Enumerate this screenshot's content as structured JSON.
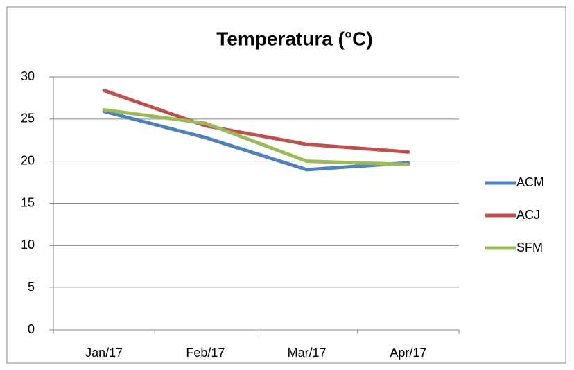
{
  "chart_data": {
    "type": "line",
    "title": "Temperatura (°C)",
    "categories": [
      "Jan/17",
      "Feb/17",
      "Mar/17",
      "Apr/17"
    ],
    "series": [
      {
        "name": "ACM",
        "color": "#4f81bd",
        "values": [
          25.9,
          22.8,
          19.0,
          19.8
        ]
      },
      {
        "name": "ACJ",
        "color": "#c0504d",
        "values": [
          28.4,
          24.2,
          22.0,
          21.1
        ]
      },
      {
        "name": "SFM",
        "color": "#9bbb59",
        "values": [
          26.1,
          24.5,
          20.0,
          19.6
        ]
      }
    ],
    "ylim": [
      0,
      30
    ],
    "yticks": [
      0,
      5,
      10,
      15,
      20,
      25,
      30
    ],
    "grid": true,
    "legend": "right"
  }
}
